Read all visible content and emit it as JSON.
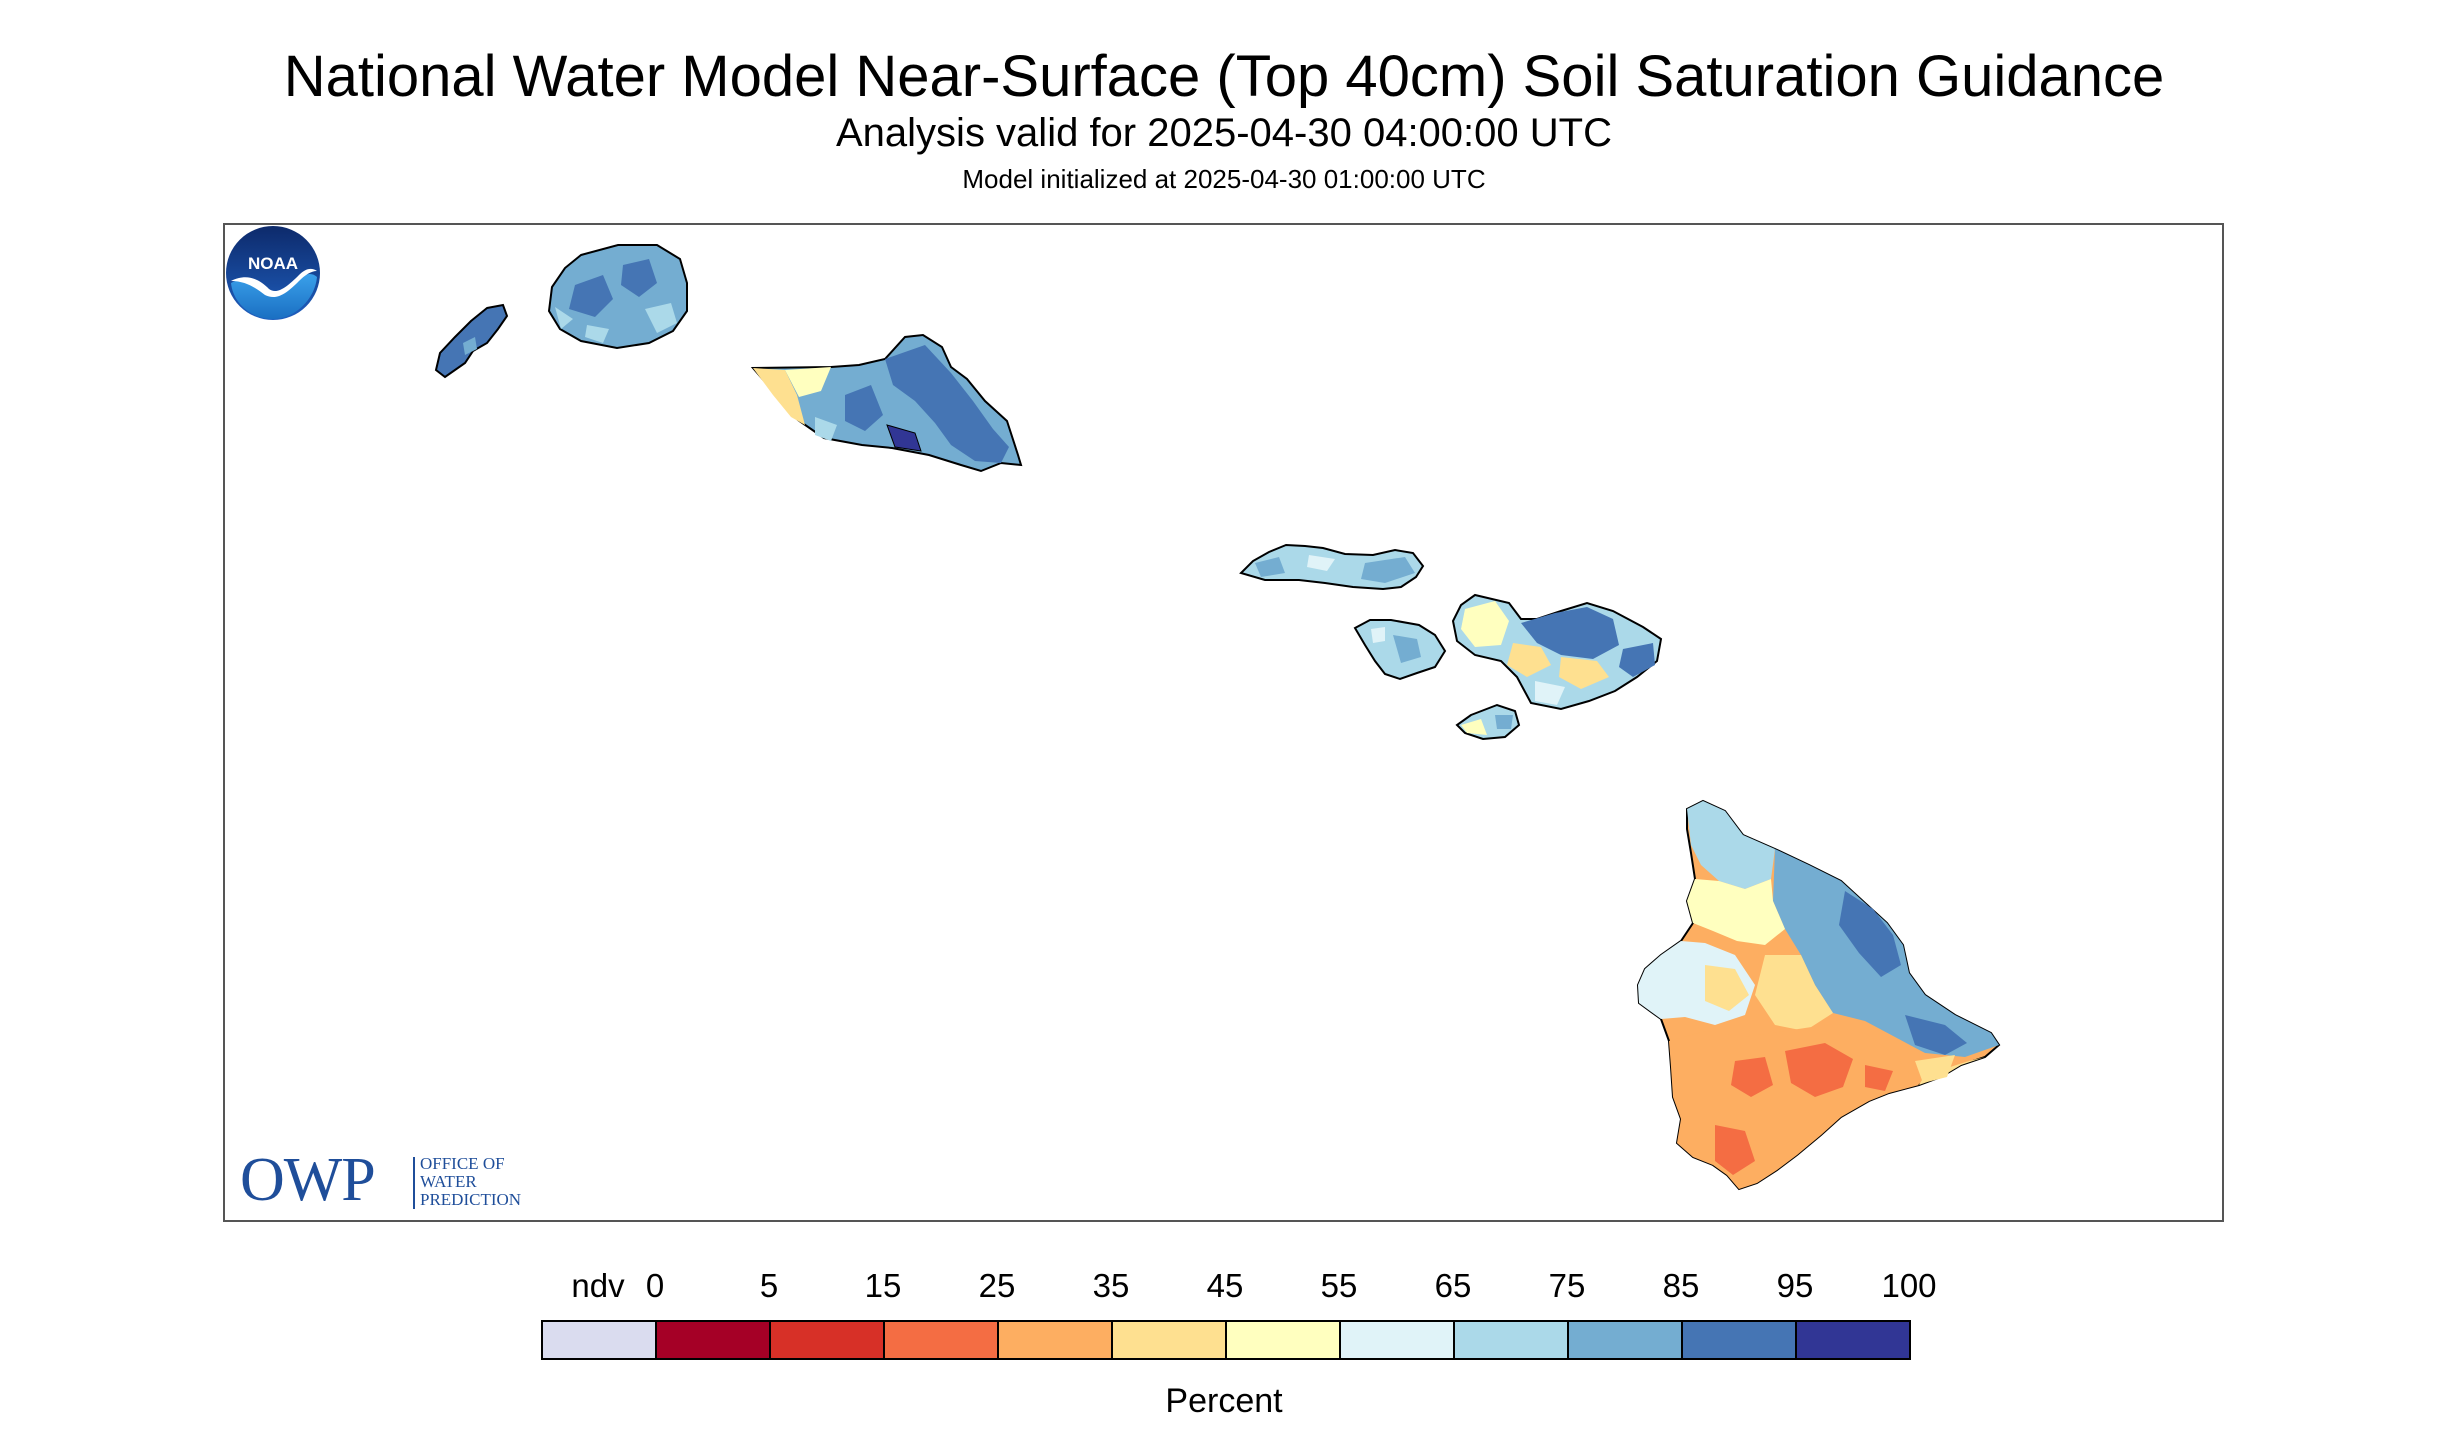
{
  "title": "National Water Model Near-Surface (Top 40cm) Soil Saturation Guidance",
  "subtitle": "Analysis valid for 2025-04-30 04:00:00 UTC",
  "subtitle2": "Model initialized at 2025-04-30 01:00:00 UTC",
  "legend": {
    "unit": "Percent",
    "tick_labels": [
      "ndv",
      "0",
      "5",
      "15",
      "25",
      "35",
      "45",
      "55",
      "65",
      "75",
      "85",
      "95",
      "100"
    ],
    "bins": [
      {
        "label": "ndv",
        "color": "#dadcef"
      },
      {
        "label": "0-5",
        "color": "#a50026"
      },
      {
        "label": "5-15",
        "color": "#d73027"
      },
      {
        "label": "15-25",
        "color": "#f46d43"
      },
      {
        "label": "25-35",
        "color": "#fdae61"
      },
      {
        "label": "35-45",
        "color": "#fee090"
      },
      {
        "label": "45-55",
        "color": "#ffffbf"
      },
      {
        "label": "55-65",
        "color": "#e0f3f8"
      },
      {
        "label": "65-75",
        "color": "#abd9e9"
      },
      {
        "label": "75-85",
        "color": "#74add1"
      },
      {
        "label": "85-95",
        "color": "#4575b4"
      },
      {
        "label": "95-100",
        "color": "#313695"
      }
    ]
  },
  "logos": {
    "owp": {
      "letters": "OWP",
      "line1": "OFFICE OF",
      "line2": "WATER",
      "line3": "PREDICTION",
      "color": "#1f4e9a"
    },
    "noaa": {
      "text": "NOAA",
      "color": "#1a6fc2"
    }
  },
  "islands": [
    {
      "name": "Niihau",
      "dominant_color": "#4575b4"
    },
    {
      "name": "Kauai",
      "dominant_color": "#74add1"
    },
    {
      "name": "Oahu",
      "dominant_color": "#4575b4"
    },
    {
      "name": "Molokai",
      "dominant_color": "#abd9e9"
    },
    {
      "name": "Lanai",
      "dominant_color": "#abd9e9"
    },
    {
      "name": "Maui",
      "dominant_color": "#74add1"
    },
    {
      "name": "Kahoolawe",
      "dominant_color": "#abd9e9"
    },
    {
      "name": "Hawaii",
      "dominant_color": "#fdae61"
    }
  ]
}
